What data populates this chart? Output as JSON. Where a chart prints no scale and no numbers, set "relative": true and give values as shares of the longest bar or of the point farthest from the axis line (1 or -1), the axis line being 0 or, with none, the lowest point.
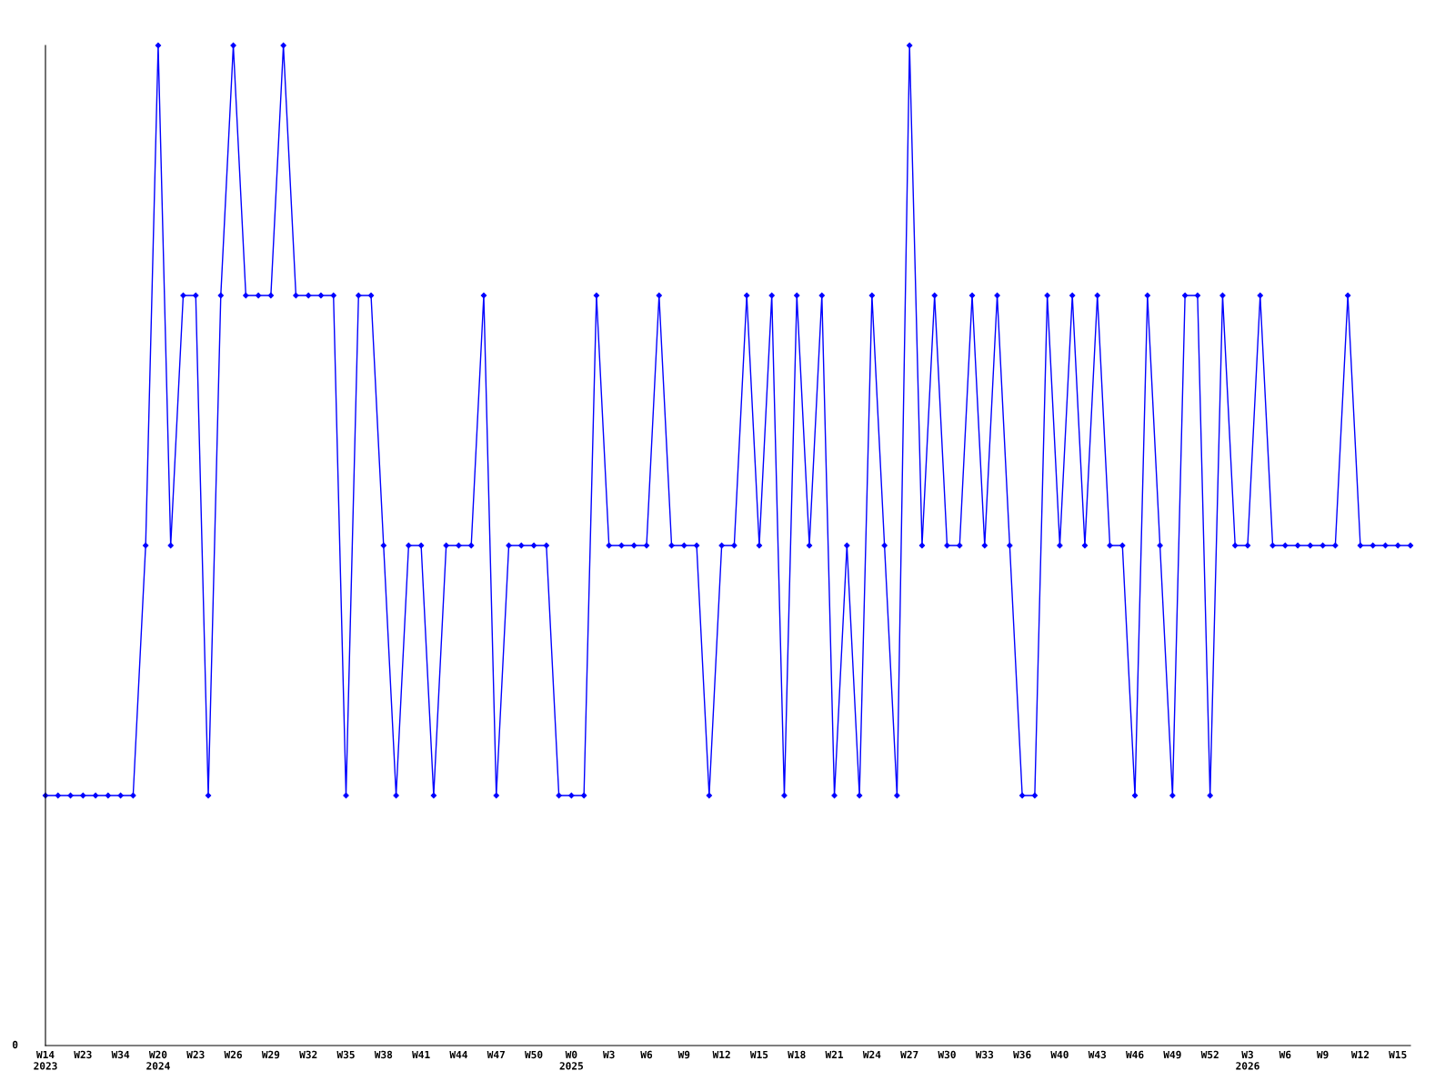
{
  "chart_data": {
    "type": "line",
    "relative": true,
    "marker": "diamond",
    "line_style": "solid",
    "grid": false,
    "categories": [
      "W14\n2023",
      null,
      null,
      "W23",
      null,
      null,
      "W34",
      null,
      null,
      "W20\n2024",
      null,
      null,
      "W23",
      null,
      null,
      "W26",
      null,
      null,
      "W29",
      null,
      null,
      "W32",
      null,
      null,
      "W35",
      null,
      null,
      "W38",
      null,
      null,
      "W41",
      null,
      null,
      "W44",
      null,
      null,
      "W47",
      null,
      null,
      "W50",
      null,
      null,
      "W0\n2025",
      null,
      null,
      "W3",
      null,
      null,
      "W6",
      null,
      null,
      "W9",
      null,
      null,
      "W12",
      null,
      null,
      "W15",
      null,
      null,
      "W18",
      null,
      null,
      "W21",
      null,
      null,
      "W24",
      null,
      null,
      "W27",
      null,
      null,
      "W30",
      null,
      null,
      "W33",
      null,
      null,
      "W36",
      null,
      null,
      "W40",
      null,
      null,
      "W43",
      null,
      null,
      "W46",
      null,
      null,
      "W49",
      null,
      null,
      "W52",
      null,
      null,
      "W3\n2026",
      null,
      null,
      "W6",
      null,
      null,
      "W9",
      null,
      null,
      "W12",
      null,
      null,
      "W15",
      null
    ],
    "series": [
      {
        "color": "#0000ff",
        "values": [
          0.25,
          0.25,
          0.25,
          0.25,
          0.25,
          0.25,
          0.25,
          0.25,
          0.5,
          1,
          0.5,
          0.75,
          0.75,
          0.25,
          0.75,
          1,
          0.75,
          0.75,
          0.75,
          1,
          0.75,
          0.75,
          0.75,
          0.75,
          0.25,
          0.75,
          0.75,
          0.5,
          0.25,
          0.5,
          0.5,
          0.25,
          0.5,
          0.5,
          0.5,
          0.75,
          0.25,
          0.5,
          0.5,
          0.5,
          0.5,
          0.25,
          0.25,
          0.25,
          0.75,
          0.5,
          0.5,
          0.5,
          0.5,
          0.75,
          0.5,
          0.5,
          0.5,
          0.25,
          0.5,
          0.5,
          0.75,
          0.5,
          0.75,
          0.25,
          0.75,
          0.5,
          0.75,
          0.25,
          0.5,
          0.25,
          0.75,
          0.5,
          0.25,
          1,
          0.5,
          0.75,
          0.5,
          0.5,
          0.75,
          0.5,
          0.75,
          0.5,
          0.25,
          0.25,
          0.75,
          0.5,
          0.75,
          0.5,
          0.75,
          0.5,
          0.5,
          0.25,
          0.75,
          0.5,
          0.25,
          0.75,
          0.75,
          0.25,
          0.75,
          0.5,
          0.5,
          0.75,
          0.5,
          0.5,
          0.5,
          0.5,
          0.5,
          0.5,
          0.75,
          0.5,
          0.5,
          0.5,
          0.5,
          0.5
        ]
      }
    ],
    "annotations": [
      "0"
    ]
  }
}
